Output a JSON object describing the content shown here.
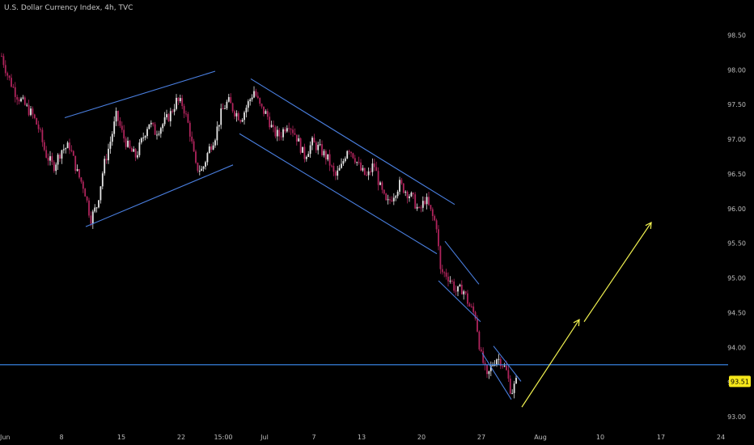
{
  "chart_data": {
    "type": "candlestick",
    "title": "U.S. Dollar Currency Index, 4h, TVC",
    "ylim": [
      92.92,
      98.68
    ],
    "xlim": [
      0,
      900
    ],
    "y_ticks": [
      "98.50",
      "98.00",
      "97.50",
      "97.00",
      "96.50",
      "96.00",
      "95.50",
      "95.00",
      "94.50",
      "94.00",
      "93.50",
      "93.00"
    ],
    "x_ticks": [
      {
        "label": "Jun",
        "x": 0
      },
      {
        "label": "8",
        "x": 76
      },
      {
        "label": "15",
        "x": 150
      },
      {
        "label": "22",
        "x": 224
      },
      {
        "label": "15:00",
        "x": 276
      },
      {
        "label": "Jul",
        "x": 327
      },
      {
        "label": "7",
        "x": 388
      },
      {
        "label": "13",
        "x": 447
      },
      {
        "label": "20",
        "x": 521
      },
      {
        "label": "27",
        "x": 595
      },
      {
        "label": "Aug",
        "x": 668
      },
      {
        "label": "10",
        "x": 742
      },
      {
        "label": "17",
        "x": 817
      },
      {
        "label": "24",
        "x": 891
      }
    ],
    "current_price": "93.51",
    "horizontal_level": 93.75,
    "colors": {
      "up": "#e6e6e6",
      "down": "#b0245c",
      "trendline": "#4a7fe0",
      "level": "#3d8ef5",
      "arrow": "#f0f050",
      "price_label_bg": "#f5e71a"
    },
    "price_path": [
      [
        2,
        98.2
      ],
      [
        10,
        97.9
      ],
      [
        20,
        97.65
      ],
      [
        30,
        97.5
      ],
      [
        40,
        97.35
      ],
      [
        48,
        97.15
      ],
      [
        56,
        96.8
      ],
      [
        66,
        96.6
      ],
      [
        76,
        96.85
      ],
      [
        86,
        96.9
      ],
      [
        96,
        96.5
      ],
      [
        104,
        96.3
      ],
      [
        112,
        95.85
      ],
      [
        120,
        96.05
      ],
      [
        128,
        96.6
      ],
      [
        136,
        96.95
      ],
      [
        144,
        97.35
      ],
      [
        152,
        97.05
      ],
      [
        160,
        96.85
      ],
      [
        168,
        96.75
      ],
      [
        176,
        97.0
      ],
      [
        184,
        97.25
      ],
      [
        192,
        97.1
      ],
      [
        200,
        97.2
      ],
      [
        210,
        97.35
      ],
      [
        218,
        97.55
      ],
      [
        226,
        97.5
      ],
      [
        234,
        97.15
      ],
      [
        242,
        96.6
      ],
      [
        250,
        96.55
      ],
      [
        258,
        96.85
      ],
      [
        266,
        97.05
      ],
      [
        274,
        97.4
      ],
      [
        282,
        97.55
      ],
      [
        290,
        97.4
      ],
      [
        298,
        97.3
      ],
      [
        306,
        97.5
      ],
      [
        314,
        97.7
      ],
      [
        322,
        97.45
      ],
      [
        330,
        97.35
      ],
      [
        338,
        97.1
      ],
      [
        346,
        97.05
      ],
      [
        356,
        97.25
      ],
      [
        366,
        97.05
      ],
      [
        376,
        96.75
      ],
      [
        386,
        96.95
      ],
      [
        396,
        96.85
      ],
      [
        406,
        96.7
      ],
      [
        414,
        96.45
      ],
      [
        422,
        96.6
      ],
      [
        430,
        96.9
      ],
      [
        438,
        96.75
      ],
      [
        446,
        96.55
      ],
      [
        454,
        96.45
      ],
      [
        462,
        96.65
      ],
      [
        470,
        96.3
      ],
      [
        478,
        96.05
      ],
      [
        486,
        96.2
      ],
      [
        494,
        96.35
      ],
      [
        502,
        96.25
      ],
      [
        510,
        96.15
      ],
      [
        518,
        95.95
      ],
      [
        526,
        96.15
      ],
      [
        534,
        95.9
      ],
      [
        540,
        95.75
      ],
      [
        544,
        95.1
      ],
      [
        552,
        95.05
      ],
      [
        558,
        94.95
      ],
      [
        564,
        94.8
      ],
      [
        572,
        94.85
      ],
      [
        580,
        94.6
      ],
      [
        588,
        94.45
      ],
      [
        594,
        93.9
      ],
      [
        598,
        93.75
      ],
      [
        602,
        93.55
      ],
      [
        608,
        93.75
      ],
      [
        614,
        93.85
      ],
      [
        620,
        93.8
      ],
      [
        626,
        93.65
      ],
      [
        632,
        93.35
      ],
      [
        638,
        93.5
      ]
    ],
    "trendlines": [
      {
        "x1": 80,
        "y1": 97.31,
        "x2": 266,
        "y2": 97.98
      },
      {
        "x1": 106,
        "y1": 95.74,
        "x2": 288,
        "y2": 96.63
      },
      {
        "x1": 310,
        "y1": 97.87,
        "x2": 562,
        "y2": 96.06
      },
      {
        "x1": 296,
        "y1": 97.08,
        "x2": 540,
        "y2": 95.35
      },
      {
        "x1": 550,
        "y1": 95.53,
        "x2": 592,
        "y2": 94.91
      },
      {
        "x1": 542,
        "y1": 94.96,
        "x2": 594,
        "y2": 94.37
      },
      {
        "x1": 610,
        "y1": 94.02,
        "x2": 644,
        "y2": 93.51
      },
      {
        "x1": 596,
        "y1": 93.92,
        "x2": 632,
        "y2": 93.25
      }
    ],
    "arrows": [
      {
        "x1": 645,
        "y1": 93.14,
        "x2": 716,
        "y2": 94.4
      },
      {
        "x1": 722,
        "y1": 94.37,
        "x2": 805,
        "y2": 95.8
      }
    ]
  }
}
